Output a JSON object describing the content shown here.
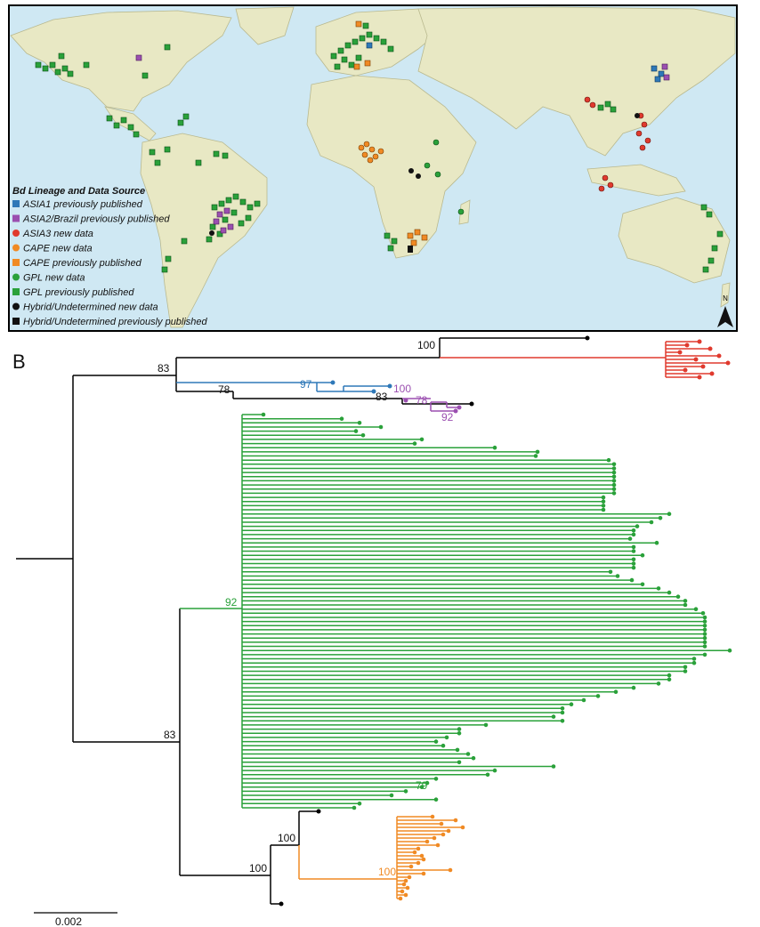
{
  "colors": {
    "asia1": "#2e78b8",
    "asia2": "#9b4fb0",
    "asia3": "#e03a2e",
    "cape": "#f08a24",
    "gpl": "#2aa13a",
    "hybrid": "#111111",
    "ocean": "#cfe8f3",
    "land": "#e8e8c4"
  },
  "legend": {
    "title": "Bd Lineage and Data Source",
    "items": [
      {
        "label": "ASIA1 previously published",
        "shape": "square",
        "color": "#2e78b8"
      },
      {
        "label": "ASIA2/Brazil previously published",
        "shape": "square",
        "color": "#9b4fb0"
      },
      {
        "label": "ASIA3 new data",
        "shape": "circle",
        "color": "#e03a2e"
      },
      {
        "label": "CAPE new data",
        "shape": "circle",
        "color": "#f08a24"
      },
      {
        "label": "CAPE previously published",
        "shape": "square",
        "color": "#f08a24"
      },
      {
        "label": "GPL new data",
        "shape": "circle",
        "color": "#2aa13a"
      },
      {
        "label": "GPL previously published",
        "shape": "square",
        "color": "#2aa13a"
      },
      {
        "label": "Hybrid/Undetermined new data",
        "shape": "circle",
        "color": "#111111"
      },
      {
        "label": "Hybrid/Undetermined previously published",
        "shape": "square",
        "color": "#111111"
      }
    ]
  },
  "north_arrow": "N",
  "panel_b": {
    "label": "B",
    "scale_label": "0.002"
  },
  "bootstrap": {
    "asia3_100": "100",
    "root_83": "83",
    "asia1_97": "97",
    "node_78_black": "78",
    "node_83_black": "83",
    "asia2_100": "100",
    "asia2_78": "78",
    "asia2_92": "92",
    "gpl_92": "92",
    "gpl_83": "83",
    "gpl_79": "79",
    "cape_100_outer": "100",
    "cape_100_inner": "100",
    "cape_100_clade": "100"
  }
}
